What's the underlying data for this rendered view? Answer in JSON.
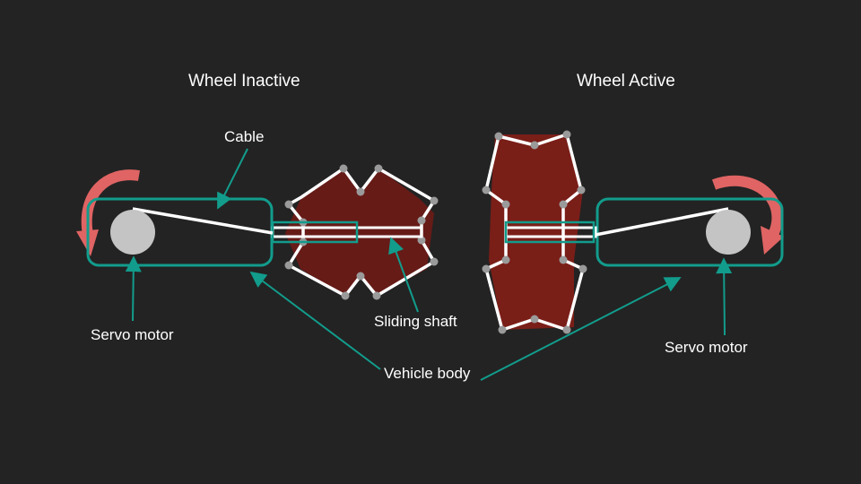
{
  "titles": {
    "left": "Wheel Inactive",
    "right": "Wheel Active"
  },
  "labels": {
    "cable": "Cable",
    "servo_left": "Servo motor",
    "servo_right": "Servo motor",
    "sliding_shaft": "Sliding shaft",
    "vehicle_body": "Vehicle body"
  },
  "colors": {
    "background": "#232323",
    "teal": "#129c8c",
    "arrow_red": "#e06464",
    "wheel_red": "#7a1e18",
    "motor_gray": "#c4c4c4",
    "joint_gray": "#9a9a9a"
  }
}
